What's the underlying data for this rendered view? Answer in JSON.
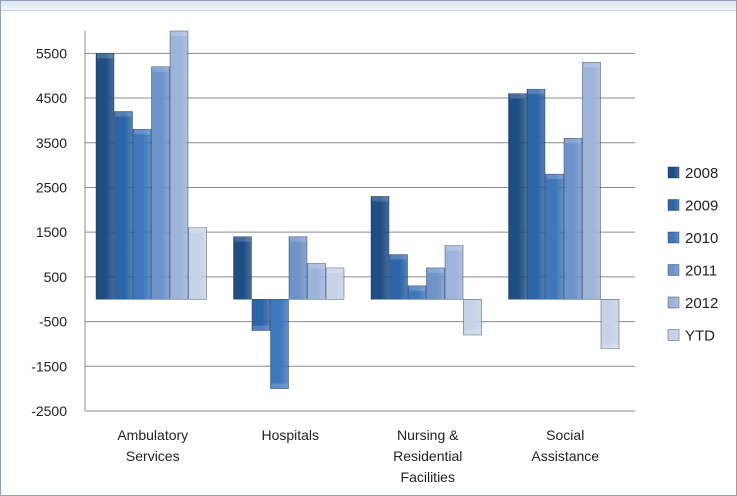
{
  "chart_data": {
    "type": "bar",
    "categories": [
      [
        "Ambulatory",
        "Services"
      ],
      [
        "Hospitals"
      ],
      [
        "Nursing &",
        "Residential",
        "Facilities"
      ],
      [
        "Social",
        "Assistance"
      ]
    ],
    "series": [
      {
        "name": "2008",
        "values": [
          5500,
          1400,
          2300,
          4600
        ],
        "color": "#1f4e85"
      },
      {
        "name": "2009",
        "values": [
          4200,
          -700,
          1000,
          4700
        ],
        "color": "#2c64a8"
      },
      {
        "name": "2010",
        "values": [
          3800,
          -2000,
          300,
          2800
        ],
        "color": "#3f77bd"
      },
      {
        "name": "2011",
        "values": [
          5200,
          1400,
          700,
          3600
        ],
        "color": "#6e93c9"
      },
      {
        "name": "2012",
        "values": [
          6000,
          800,
          1200,
          5300
        ],
        "color": "#9db4d9"
      },
      {
        "name": "YTD",
        "values": [
          1600,
          700,
          -800,
          -1100
        ],
        "color": "#c6d2e8"
      }
    ],
    "yticks": [
      5500,
      4500,
      3500,
      2500,
      1500,
      500,
      -500,
      -1500,
      -2500
    ],
    "ylim": [
      -2500,
      6000
    ],
    "grid": true,
    "legend_position": "right",
    "title": "",
    "xlabel": "",
    "ylabel": ""
  }
}
